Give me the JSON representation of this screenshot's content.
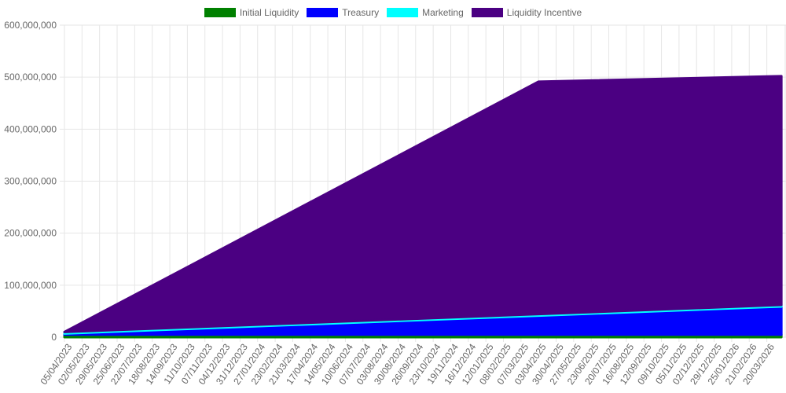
{
  "chart_data": {
    "type": "area",
    "stacked": true,
    "title": "",
    "xlabel": "",
    "ylabel": "",
    "ylim": [
      0,
      600000000
    ],
    "y_ticks": [
      "0",
      "100,000,000",
      "200,000,000",
      "300,000,000",
      "400,000,000",
      "500,000,000",
      "600,000,000"
    ],
    "grid": true,
    "legend_position": "top-center",
    "x_labels": [
      "05/04/2023",
      "02/05/2023",
      "29/05/2023",
      "25/06/2023",
      "22/07/2023",
      "18/08/2023",
      "14/09/2023",
      "11/10/2023",
      "07/11/2023",
      "04/12/2023",
      "31/12/2023",
      "27/01/2024",
      "23/02/2024",
      "21/03/2024",
      "17/04/2024",
      "14/05/2024",
      "10/06/2024",
      "07/07/2024",
      "03/08/2024",
      "30/08/2024",
      "26/09/2024",
      "23/10/2024",
      "19/11/2024",
      "16/12/2024",
      "12/01/2025",
      "08/02/2025",
      "07/03/2025",
      "03/04/2025",
      "30/04/2025",
      "27/05/2025",
      "23/06/2025",
      "20/07/2025",
      "16/08/2025",
      "12/09/2025",
      "09/10/2025",
      "05/11/2025",
      "02/12/2025",
      "29/12/2025",
      "25/01/2026",
      "21/02/2026",
      "20/03/2026"
    ],
    "series": [
      {
        "name": "Initial Liquidity",
        "color": "#008000",
        "x_index": [
          0,
          40
        ],
        "values": [
          5000000,
          5000000
        ]
      },
      {
        "name": "Treasury",
        "color": "#0000ff",
        "x_index": [
          0,
          40.83
        ],
        "values": [
          2000000,
          54000000
        ]
      },
      {
        "name": "Marketing",
        "color": "#00ffff",
        "x_index": [
          0,
          40.83
        ],
        "values": [
          3000000,
          3000000
        ]
      },
      {
        "name": "Liquidity Incentive",
        "color": "#4b0082",
        "x_index": [
          0,
          27,
          40.83
        ],
        "values": [
          0,
          447000000,
          440000000
        ]
      }
    ]
  }
}
